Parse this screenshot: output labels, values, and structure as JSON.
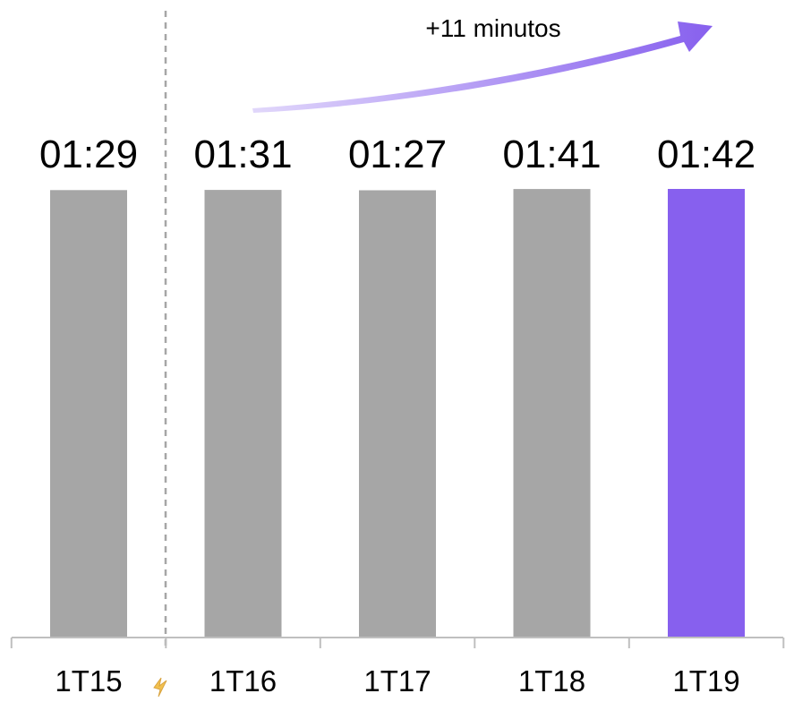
{
  "chart_data": {
    "type": "bar",
    "categories": [
      "1T15",
      "1T16",
      "1T17",
      "1T18",
      "1T19"
    ],
    "values": [
      89,
      91,
      87,
      101,
      102
    ],
    "value_labels": [
      "01:29",
      "01:31",
      "01:27",
      "01:41",
      "01:42"
    ],
    "value_unit": "minutes",
    "title": "",
    "xlabel": "",
    "ylabel": "",
    "grid": false,
    "legend": "none",
    "highlight_index": 4,
    "annotation": "+11 minutos",
    "colors": {
      "bar": "#a6a6a6",
      "highlight": "#8760ee",
      "arrow": "#8760ee",
      "divider": "#a6a6a6",
      "axis": "#bfbfbf",
      "text": "#000000"
    }
  }
}
